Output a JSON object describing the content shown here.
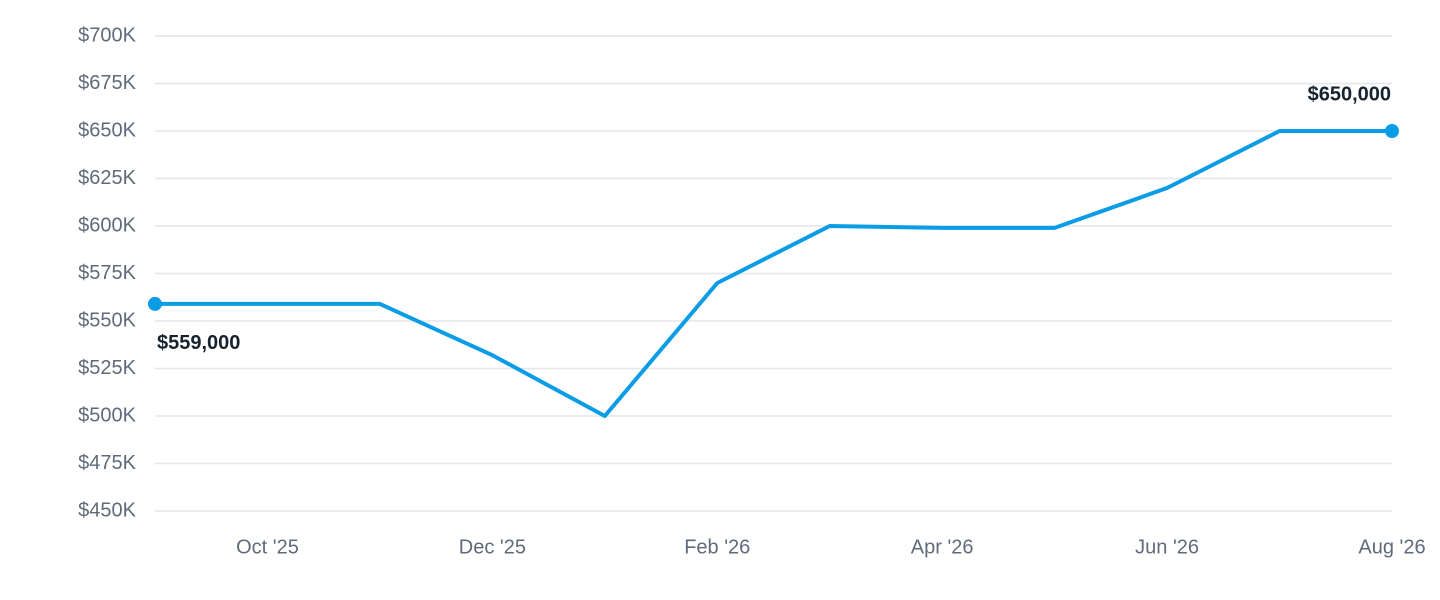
{
  "chart_data": {
    "type": "line",
    "categories": [
      null,
      "Oct '25",
      null,
      "Dec '25",
      null,
      "Feb '26",
      null,
      "Apr '26",
      null,
      "Jun '26",
      null,
      "Aug '26"
    ],
    "series": [
      {
        "color": "#0b9ce6",
        "values": [
          559000,
          559000,
          559000,
          532000,
          500000,
          570000,
          600000,
          599000,
          599000,
          620000,
          650000,
          650000
        ],
        "value_labels": [
          "$559,000",
          null,
          null,
          null,
          null,
          null,
          null,
          null,
          null,
          null,
          null,
          "$650,000"
        ]
      }
    ],
    "ylim": [
      450000,
      700000
    ],
    "yticks": [
      {
        "value": 450000,
        "label": "$450K"
      },
      {
        "value": 475000,
        "label": "$475K"
      },
      {
        "value": 500000,
        "label": "$500K"
      },
      {
        "value": 525000,
        "label": "$525K"
      },
      {
        "value": 550000,
        "label": "$550K"
      },
      {
        "value": 575000,
        "label": "$575K"
      },
      {
        "value": 600000,
        "label": "$600K"
      },
      {
        "value": 625000,
        "label": "$625K"
      },
      {
        "value": 650000,
        "label": "$650K"
      },
      {
        "value": 675000,
        "label": "$675K"
      },
      {
        "value": 700000,
        "label": "$700K"
      }
    ],
    "grid": true
  }
}
